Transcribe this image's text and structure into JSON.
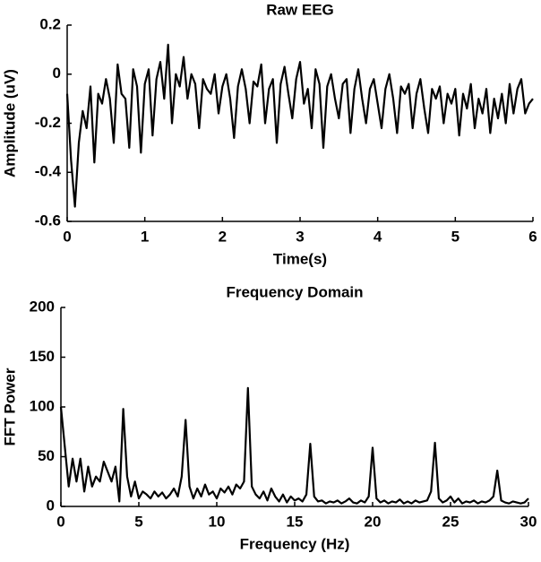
{
  "chart_data": [
    {
      "type": "line",
      "title": "Raw EEG",
      "x_label": "Time(s)",
      "y_label": "Amplitude (uV)",
      "color": "#000000",
      "grid": false,
      "xlim": [
        0,
        6
      ],
      "xticks": [
        0,
        1,
        2,
        3,
        4,
        5,
        6
      ],
      "ylim": [
        -0.6,
        0.2
      ],
      "yticks": [
        0.2,
        0,
        -0.2,
        -0.4,
        -0.6
      ],
      "x": [
        0,
        0.05,
        0.1,
        0.15,
        0.2,
        0.25,
        0.3,
        0.35,
        0.4,
        0.45,
        0.5,
        0.55,
        0.6,
        0.65,
        0.7,
        0.75,
        0.8,
        0.85,
        0.9,
        0.95,
        1,
        1.05,
        1.1,
        1.15,
        1.2,
        1.25,
        1.3,
        1.35,
        1.4,
        1.45,
        1.5,
        1.55,
        1.6,
        1.65,
        1.7,
        1.75,
        1.8,
        1.85,
        1.9,
        1.95,
        2,
        2.05,
        2.1,
        2.15,
        2.2,
        2.25,
        2.3,
        2.35,
        2.4,
        2.45,
        2.5,
        2.55,
        2.6,
        2.65,
        2.7,
        2.75,
        2.8,
        2.85,
        2.9,
        2.95,
        3,
        3.05,
        3.1,
        3.15,
        3.2,
        3.25,
        3.3,
        3.35,
        3.4,
        3.45,
        3.5,
        3.55,
        3.6,
        3.65,
        3.7,
        3.75,
        3.8,
        3.85,
        3.9,
        3.95,
        4,
        4.05,
        4.1,
        4.15,
        4.2,
        4.25,
        4.3,
        4.35,
        4.4,
        4.45,
        4.5,
        4.55,
        4.6,
        4.65,
        4.7,
        4.75,
        4.8,
        4.85,
        4.9,
        4.95,
        5,
        5.05,
        5.1,
        5.15,
        5.2,
        5.25,
        5.3,
        5.35,
        5.4,
        5.45,
        5.5,
        5.55,
        5.6,
        5.65,
        5.7,
        5.75,
        5.8,
        5.85,
        5.9,
        5.95,
        6
      ],
      "values": [
        -0.08,
        -0.35,
        -0.54,
        -0.28,
        -0.15,
        -0.22,
        -0.05,
        -0.36,
        -0.08,
        -0.12,
        -0.02,
        -0.1,
        -0.28,
        0.04,
        -0.08,
        -0.1,
        -0.3,
        0.02,
        -0.05,
        -0.32,
        -0.04,
        0.02,
        -0.25,
        -0.02,
        0.05,
        -0.1,
        0.12,
        -0.2,
        0,
        -0.05,
        0.07,
        -0.1,
        0,
        -0.04,
        -0.22,
        -0.02,
        -0.06,
        -0.08,
        0,
        -0.16,
        -0.05,
        0,
        -0.1,
        -0.26,
        -0.05,
        0.02,
        -0.06,
        -0.2,
        -0.03,
        -0.05,
        0.04,
        -0.2,
        -0.06,
        -0.02,
        -0.28,
        -0.04,
        0.03,
        -0.08,
        -0.18,
        -0.02,
        0.05,
        -0.12,
        -0.06,
        -0.22,
        0.02,
        -0.04,
        -0.3,
        -0.05,
        0,
        -0.1,
        -0.18,
        -0.04,
        -0.02,
        -0.24,
        -0.06,
        0.02,
        -0.1,
        -0.2,
        -0.06,
        -0.02,
        -0.12,
        -0.22,
        -0.06,
        0,
        -0.1,
        -0.24,
        -0.05,
        -0.08,
        -0.04,
        -0.22,
        -0.08,
        -0.02,
        -0.14,
        -0.24,
        -0.06,
        -0.1,
        -0.05,
        -0.2,
        -0.08,
        -0.12,
        -0.06,
        -0.25,
        -0.08,
        -0.14,
        -0.04,
        -0.22,
        -0.1,
        -0.16,
        -0.06,
        -0.24,
        -0.1,
        -0.18,
        -0.08,
        -0.2,
        -0.04,
        -0.16,
        -0.06,
        -0.02,
        -0.16,
        -0.12,
        -0.1
      ]
    },
    {
      "type": "line",
      "title": "Frequency Domain",
      "x_label": "Frequency (Hz)",
      "y_label": "FFT Power",
      "color": "#000000",
      "grid": false,
      "xlim": [
        0,
        30
      ],
      "xticks": [
        0,
        5,
        10,
        15,
        20,
        25,
        30
      ],
      "ylim": [
        0,
        200
      ],
      "yticks": [
        0,
        50,
        100,
        150,
        200
      ],
      "x": [
        0,
        0.25,
        0.5,
        0.75,
        1,
        1.25,
        1.5,
        1.75,
        2,
        2.25,
        2.5,
        2.75,
        3,
        3.25,
        3.5,
        3.75,
        4,
        4.25,
        4.5,
        4.75,
        5,
        5.25,
        5.5,
        5.75,
        6,
        6.25,
        6.5,
        6.75,
        7,
        7.25,
        7.5,
        7.75,
        8,
        8.25,
        8.5,
        8.75,
        9,
        9.25,
        9.5,
        9.75,
        10,
        10.25,
        10.5,
        10.75,
        11,
        11.25,
        11.5,
        11.75,
        12,
        12.25,
        12.5,
        12.75,
        13,
        13.25,
        13.5,
        13.75,
        14,
        14.25,
        14.5,
        14.75,
        15,
        15.25,
        15.5,
        15.75,
        16,
        16.25,
        16.5,
        16.75,
        17,
        17.25,
        17.5,
        17.75,
        18,
        18.25,
        18.5,
        18.75,
        19,
        19.25,
        19.5,
        19.75,
        20,
        20.25,
        20.5,
        20.75,
        21,
        21.25,
        21.5,
        21.75,
        22,
        22.25,
        22.5,
        22.75,
        23,
        23.25,
        23.5,
        23.75,
        24,
        24.25,
        24.5,
        24.75,
        25,
        25.25,
        25.5,
        25.75,
        26,
        26.25,
        26.5,
        26.75,
        27,
        27.25,
        27.5,
        27.75,
        28,
        28.25,
        28.5,
        28.75,
        29,
        29.25,
        29.5,
        29.75,
        30
      ],
      "values": [
        100,
        60,
        20,
        48,
        25,
        48,
        15,
        40,
        20,
        30,
        25,
        45,
        35,
        25,
        40,
        5,
        98,
        30,
        10,
        25,
        8,
        15,
        12,
        8,
        15,
        10,
        14,
        8,
        12,
        18,
        10,
        30,
        87,
        20,
        8,
        18,
        10,
        22,
        12,
        15,
        8,
        18,
        14,
        20,
        12,
        22,
        18,
        25,
        119,
        20,
        12,
        8,
        15,
        6,
        18,
        10,
        5,
        12,
        4,
        10,
        6,
        8,
        5,
        12,
        63,
        10,
        5,
        6,
        3,
        5,
        4,
        6,
        3,
        5,
        8,
        4,
        3,
        6,
        4,
        10,
        59,
        8,
        4,
        6,
        3,
        5,
        4,
        7,
        3,
        5,
        3,
        6,
        4,
        5,
        6,
        15,
        64,
        8,
        4,
        6,
        10,
        4,
        8,
        3,
        5,
        4,
        6,
        3,
        5,
        4,
        6,
        10,
        36,
        6,
        4,
        3,
        5,
        4,
        3,
        4,
        8
      ]
    }
  ]
}
